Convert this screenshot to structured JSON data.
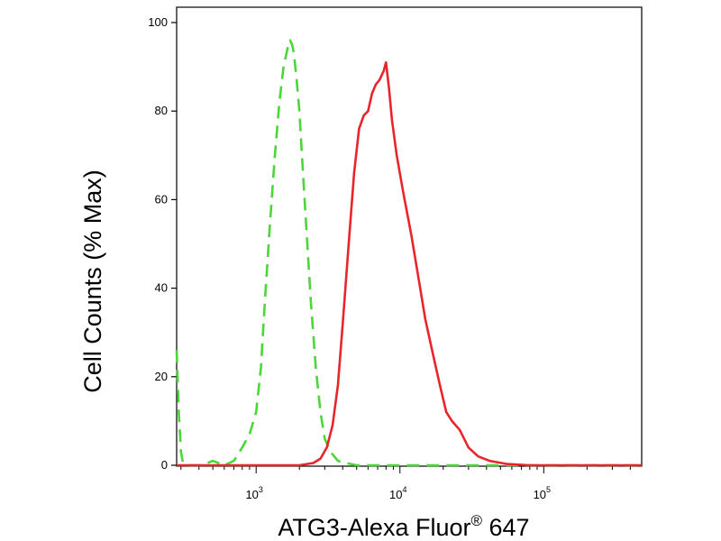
{
  "chart_data": {
    "type": "line",
    "title": "",
    "xlabel": "ATG3-Alexa Fluor",
    "xlabel_superscript": "®",
    "xlabel_suffix": " 647",
    "ylabel": "Cell Counts (% Max)",
    "x_scale": "log",
    "xlim": [
      280,
      480000
    ],
    "ylim": [
      0,
      105
    ],
    "grid": false,
    "legend": "none",
    "y_ticks": [
      0,
      20,
      40,
      60,
      80,
      100
    ],
    "x_ticks": [
      {
        "value": 1000,
        "base": "10",
        "exp": "3"
      },
      {
        "value": 10000,
        "base": "10",
        "exp": "4"
      },
      {
        "value": 100000,
        "base": "10",
        "exp": "5"
      }
    ],
    "series": [
      {
        "color": "#4cd639",
        "style": "dashed",
        "x": [
          280,
          290,
          300,
          310,
          330,
          360,
          420,
          500,
          600,
          700,
          800,
          900,
          1000,
          1080,
          1150,
          1250,
          1350,
          1450,
          1550,
          1650,
          1720,
          1780,
          1830,
          1900,
          2000,
          2100,
          2250,
          2400,
          2600,
          2800,
          3000,
          3300,
          3700,
          4200,
          5000,
          7000,
          10000,
          20000,
          50000,
          100000,
          480000
        ],
        "y": [
          26,
          12,
          3,
          0.5,
          0,
          0,
          0,
          1,
          0,
          1,
          4,
          7,
          12,
          22,
          37,
          55,
          70,
          82,
          90,
          94,
          96,
          95,
          93,
          88,
          80,
          68,
          52,
          37,
          22,
          12,
          6,
          3,
          1,
          0.5,
          0,
          0,
          0,
          0,
          0,
          0,
          0
        ]
      },
      {
        "color": "#e8252b",
        "style": "solid",
        "x": [
          280,
          2000,
          2500,
          2800,
          3100,
          3400,
          3700,
          4000,
          4400,
          4800,
          5200,
          5600,
          6000,
          6400,
          6800,
          7200,
          7700,
          8000,
          8400,
          8800,
          9500,
          10500,
          12000,
          13500,
          15000,
          17000,
          19000,
          21000,
          23000,
          26000,
          30000,
          35000,
          42000,
          55000,
          80000,
          480000
        ],
        "y": [
          0,
          0,
          0.5,
          1.5,
          4,
          9,
          18,
          32,
          50,
          66,
          76,
          79,
          80,
          84,
          86,
          87,
          89,
          91,
          85,
          78,
          70,
          62,
          52,
          42,
          33,
          25,
          18,
          12,
          10,
          8,
          4,
          2,
          1,
          0.3,
          0,
          0
        ]
      }
    ]
  }
}
